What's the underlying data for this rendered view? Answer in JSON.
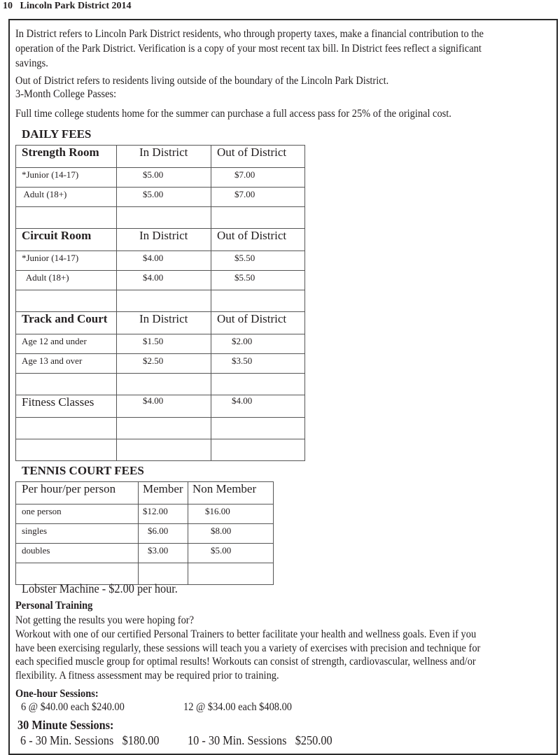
{
  "page_header": "10   Lincoln Park District 2014",
  "intro": {
    "in_district_lines": [
      "In District refers to Lincoln Park District residents, who through property taxes, make a financial contribution to the",
      "operation of the Park District.  Verification is a copy of your most recent tax bill. In District fees reflect a significant",
      "savings."
    ],
    "out_district": "Out of District refers to residents living outside of the boundary of the Lincoln Park District.",
    "college_title": "3-Month College Passes:",
    "college_text": "Full time college students home for the summer can purchase a full access pass for 25% of the original cost."
  },
  "daily_fees": {
    "title": "DAILY FEES",
    "sections": [
      {
        "name": "Strength Room",
        "col1": "In District",
        "col2": "Out of District",
        "rows": [
          [
            "*Junior (14-17)",
            "$5.00",
            "$7.00"
          ],
          [
            " Adult (18+)",
            "$5.00",
            "$7.00"
          ]
        ]
      },
      {
        "name": "Circuit Room",
        "col1": "In District",
        "col2": "Out of District",
        "rows": [
          [
            "*Junior (14-17)",
            "$4.00",
            "$5.50"
          ],
          [
            "  Adult (18+)",
            "$4.00",
            "$5.50"
          ]
        ]
      },
      {
        "name": "Track and Court",
        "col1": "In District",
        "col2": "Out of District",
        "rows": [
          [
            "Age 12 and under",
            "$1.50",
            "$2.00"
          ],
          [
            "Age 13 and over",
            "$2.50",
            "$3.50"
          ]
        ]
      }
    ],
    "fitness": {
      "name": "Fitness Classes",
      "in": "$4.00",
      "out": "$4.00"
    }
  },
  "tennis": {
    "title": "TENNIS COURT FEES",
    "headers": [
      "Per hour/per person",
      "Member",
      "Non Member"
    ],
    "rows": [
      [
        "one person",
        "$12.00",
        "$16.00"
      ],
      [
        "singles",
        "$6.00",
        "$8.00"
      ],
      [
        "doubles",
        "$3.00",
        "$5.00"
      ]
    ],
    "lobster": "Lobster Machine - $2.00 per hour."
  },
  "personal_training": {
    "title": "Personal Training",
    "question": "Not getting the results you were hoping for?",
    "body_lines": [
      "Workout with one of our certified Personal Trainers to better facilitate your health and wellness goals.  Even if you",
      "have been exercising regularly, these sessions will teach you a variety of exercises with precision and technique for",
      "each specified muscle group for optimal results!  Workouts can consist of strength, cardiovascular, wellness and/or",
      "flexibility.  A fitness assessment may be required prior to training."
    ],
    "one_hour_title": "One-hour Sessions:",
    "one_hour": [
      "6 @ $40.00 each $240.00",
      "12 @ $34.00 each $408.00"
    ],
    "half_hour_title": "30 Minute Sessions:",
    "half_hour": [
      "6 - 30 Min. Sessions   $180.00",
      "10 - 30 Min. Sessions   $250.00"
    ]
  }
}
